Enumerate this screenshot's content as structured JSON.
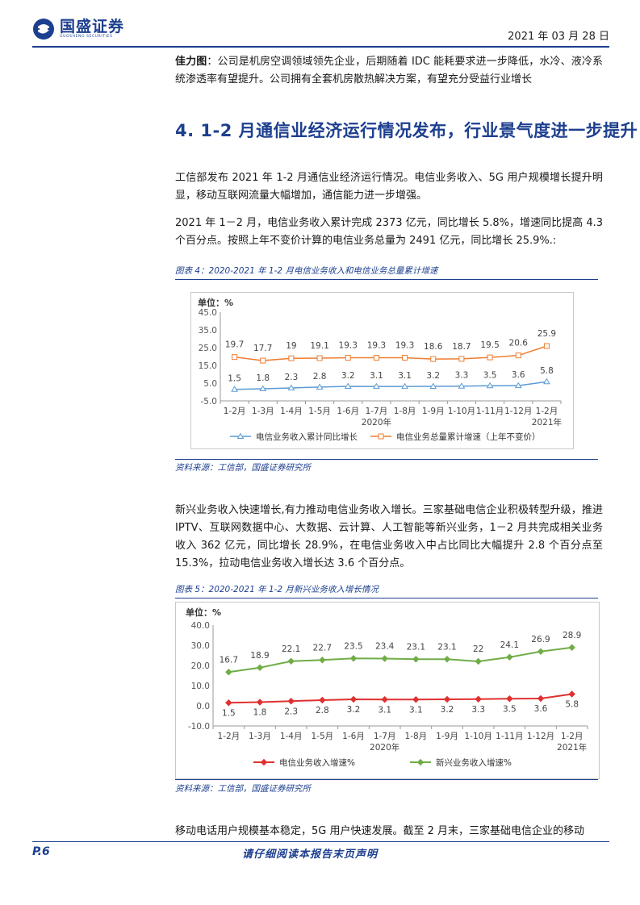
{
  "header": {
    "logo_text": "国盛证券",
    "logo_sub": "GUOSHENG SECURITIES",
    "date": "2021 年 03 月 28 日"
  },
  "intro": {
    "company": "佳力图",
    "text": "：公司是机房空调领域领先企业，后期随着 IDC 能耗要求进一步降低，水冷、液冷系统渗透率有望提升。公司拥有全套机房散热解决方案，有望充分受益行业增长"
  },
  "section": {
    "title": "4. 1-2 月通信业经济运行情况发布，行业景气度进一步提升"
  },
  "paragraphs": {
    "p1": "工信部发布 2021 年 1-2 月通信业经济运行情况。电信业务收入、5G 用户规模增长提升明显，移动互联网流量大幅增加，通信能力进一步增强。",
    "p2": "2021 年 1－2 月，电信业务收入累计完成 2373 亿元，同比增长 5.8%，增速同比提高 4.3 个百分点。按照上年不变价计算的电信业务总量为 2491 亿元，同比增长 25.9%.:",
    "p3": "新兴业务收入快速增长,有力推动电信业务收入增长。三家基础电信企业积极转型升级，推进 IPTV、互联网数据中心、大数据、云计算、人工智能等新兴业务，1－2 月共完成相关业务收入 362 亿元，同比增长 28.9%，在电信业务收入中占比同比大幅提升 2.8 个百分点至 15.3%，拉动电信业务收入增长达 3.6 个百分点。",
    "p4": "移动电话用户规模基本稳定，5G 用户快速发展。截至 2 月末，三家基础电信企业的移动"
  },
  "figure4": {
    "caption": "图表 4：2020-2021 年 1-2 月电信业务收入和电信业务总量累计增速",
    "source": "资料来源：工信部，国盛证券研究所"
  },
  "figure5": {
    "caption": "图表 5：2020-2021 年 1-2 月新兴业务收入增长情况",
    "source": "资料来源：工信部，国盛证券研究所"
  },
  "footer": {
    "page": "P.6",
    "note": "请仔细阅读本报告末页声明"
  },
  "chart_data": [
    {
      "type": "line",
      "unit_label": "单位：%",
      "categories": [
        "1-2月",
        "1-3月",
        "1-4月",
        "1-5月",
        "1-6月",
        "1-7月",
        "1-8月",
        "1-9月",
        "1-10月",
        "1-11月",
        "1-12月",
        "1-2月"
      ],
      "year_labels": [
        "2020年",
        "2021年"
      ],
      "ylim": [
        -5.0,
        45.0
      ],
      "yticks": [
        "45.0",
        "35.0",
        "25.0",
        "15.0",
        "5.0",
        "-5.0"
      ],
      "grid": false,
      "legend_position": "bottom",
      "series": [
        {
          "name": "电信业务收入累计同比增长",
          "color": "#5b9bd5",
          "marker": "triangle",
          "values": [
            1.5,
            1.8,
            2.3,
            2.8,
            3.2,
            3.1,
            3.1,
            3.2,
            3.3,
            3.5,
            3.6,
            5.8
          ]
        },
        {
          "name": "电信业务总量累计增速（上年不变价）",
          "color": "#ed7d31",
          "marker": "square",
          "values": [
            19.7,
            17.7,
            19.0,
            19.1,
            19.3,
            19.3,
            19.3,
            18.6,
            18.7,
            19.5,
            20.6,
            25.9
          ]
        }
      ]
    },
    {
      "type": "line",
      "unit_label": "单位：%",
      "categories": [
        "1-2月",
        "1-3月",
        "1-4月",
        "1-5月",
        "1-6月",
        "1-7月",
        "1-8月",
        "1-9月",
        "1-10月",
        "1-11月",
        "1-12月",
        "1-2月"
      ],
      "year_labels": [
        "2020年",
        "2021年"
      ],
      "ylim": [
        -10.0,
        40.0
      ],
      "yticks": [
        "40.0",
        "30.0",
        "20.0",
        "10.0",
        "0.0",
        "-10.0"
      ],
      "grid": false,
      "legend_position": "bottom",
      "series": [
        {
          "name": "电信业务收入增速%",
          "color": "#e03030",
          "marker": "diamond",
          "values": [
            1.5,
            1.8,
            2.3,
            2.8,
            3.2,
            3.1,
            3.1,
            3.2,
            3.3,
            3.5,
            3.6,
            5.8
          ]
        },
        {
          "name": "新兴业务收入增速%",
          "color": "#70ad47",
          "marker": "diamond",
          "values": [
            16.7,
            18.9,
            22.1,
            22.7,
            23.5,
            23.4,
            23.1,
            23.1,
            22,
            24.1,
            26.9,
            28.9
          ]
        }
      ]
    }
  ]
}
